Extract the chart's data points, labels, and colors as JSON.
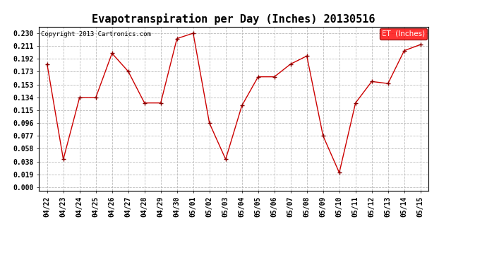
{
  "title": "Evapotranspiration per Day (Inches) 20130516",
  "copyright_text": "Copyright 2013 Cartronics.com",
  "legend_label": "ET  (Inches)",
  "dates": [
    "04/22",
    "04/23",
    "04/24",
    "04/25",
    "04/26",
    "04/27",
    "04/28",
    "04/29",
    "04/30",
    "05/01",
    "05/02",
    "05/03",
    "05/04",
    "05/05",
    "05/06",
    "05/07",
    "05/08",
    "05/09",
    "05/10",
    "05/11",
    "05/12",
    "05/13",
    "05/14",
    "05/15"
  ],
  "values": [
    0.184,
    0.042,
    0.134,
    0.134,
    0.2,
    0.173,
    0.126,
    0.126,
    0.222,
    0.23,
    0.096,
    0.042,
    0.122,
    0.165,
    0.165,
    0.184,
    0.196,
    0.077,
    0.022,
    0.126,
    0.158,
    0.155,
    0.204,
    0.213
  ],
  "ylim_min": 0.0,
  "ylim_max": 0.23,
  "yticks": [
    0.0,
    0.019,
    0.038,
    0.058,
    0.077,
    0.096,
    0.115,
    0.134,
    0.153,
    0.173,
    0.192,
    0.211,
    0.23
  ],
  "line_color": "#cc0000",
  "background_color": "#ffffff",
  "grid_color": "#bbbbbb",
  "title_fontsize": 11,
  "tick_fontsize": 7,
  "copyright_fontsize": 6.5,
  "legend_fontsize": 7.5
}
